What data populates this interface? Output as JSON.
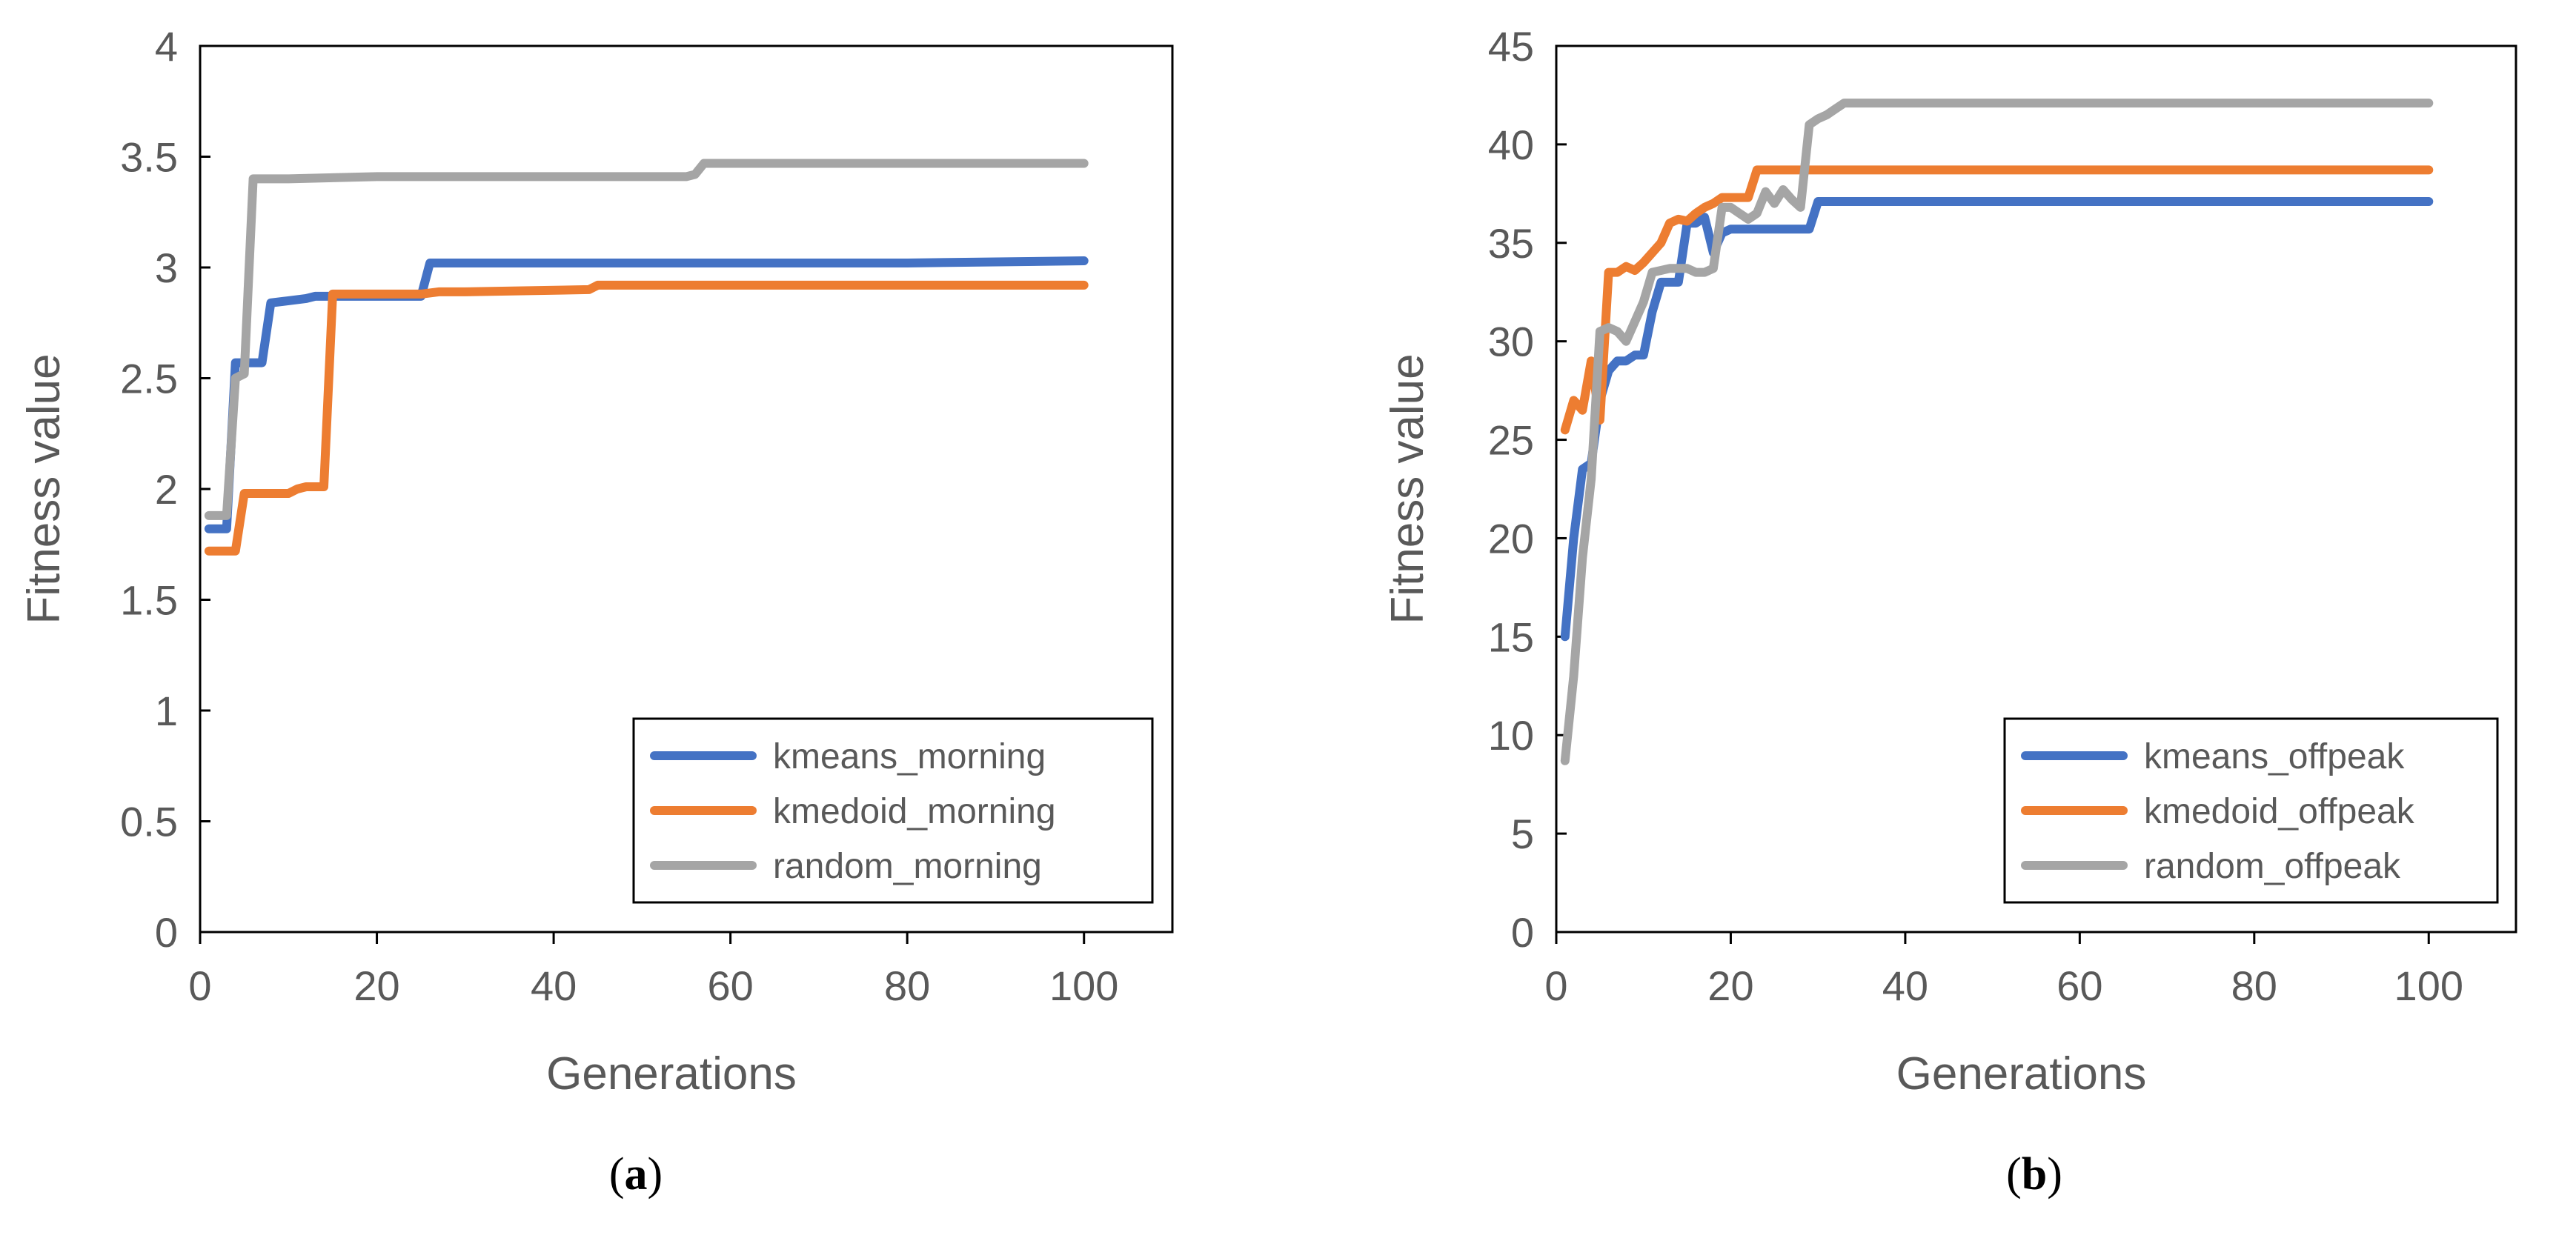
{
  "chart_data": [
    {
      "type": "line",
      "caption_open": "(",
      "caption_letter": "a",
      "caption_close": ")",
      "xlabel": "Generations",
      "ylabel": "Fitness value",
      "xlim": [
        0,
        110
      ],
      "ylim": [
        0,
        4
      ],
      "xticks": [
        0,
        20,
        40,
        60,
        80,
        100
      ],
      "yticks": [
        0,
        0.5,
        1,
        1.5,
        2,
        2.5,
        3,
        3.5,
        4
      ],
      "legend_position": "bottom-right",
      "series": [
        {
          "name": "kmeans_morning",
          "color": "#4472C4",
          "points": [
            [
              1,
              1.82
            ],
            [
              3,
              1.82
            ],
            [
              4,
              2.57
            ],
            [
              5,
              2.57
            ],
            [
              6,
              2.57
            ],
            [
              7,
              2.57
            ],
            [
              8,
              2.84
            ],
            [
              10,
              2.85
            ],
            [
              12,
              2.86
            ],
            [
              13,
              2.87
            ],
            [
              20,
              2.87
            ],
            [
              24,
              2.87
            ],
            [
              25,
              2.87
            ],
            [
              26,
              3.02
            ],
            [
              40,
              3.02
            ],
            [
              60,
              3.02
            ],
            [
              80,
              3.02
            ],
            [
              100,
              3.03
            ]
          ]
        },
        {
          "name": "kmedoid_morning",
          "color": "#ED7D31",
          "points": [
            [
              1,
              1.72
            ],
            [
              3,
              1.72
            ],
            [
              4,
              1.72
            ],
            [
              5,
              1.98
            ],
            [
              6,
              1.98
            ],
            [
              10,
              1.98
            ],
            [
              11,
              2.0
            ],
            [
              12,
              2.01
            ],
            [
              14,
              2.01
            ],
            [
              15,
              2.88
            ],
            [
              20,
              2.88
            ],
            [
              25,
              2.88
            ],
            [
              27,
              2.89
            ],
            [
              30,
              2.89
            ],
            [
              44,
              2.9
            ],
            [
              45,
              2.92
            ],
            [
              60,
              2.92
            ],
            [
              80,
              2.92
            ],
            [
              100,
              2.92
            ]
          ]
        },
        {
          "name": "random_morning",
          "color": "#A5A5A5",
          "points": [
            [
              1,
              1.88
            ],
            [
              3,
              1.88
            ],
            [
              4,
              2.5
            ],
            [
              5,
              2.52
            ],
            [
              6,
              3.4
            ],
            [
              10,
              3.4
            ],
            [
              20,
              3.41
            ],
            [
              40,
              3.41
            ],
            [
              55,
              3.41
            ],
            [
              56,
              3.42
            ],
            [
              57,
              3.47
            ],
            [
              60,
              3.47
            ],
            [
              80,
              3.47
            ],
            [
              100,
              3.47
            ]
          ]
        }
      ]
    },
    {
      "type": "line",
      "caption_open": "(",
      "caption_letter": "b",
      "caption_close": ")",
      "xlabel": "Generations",
      "ylabel": "Fitness value",
      "xlim": [
        0,
        110
      ],
      "ylim": [
        0,
        45
      ],
      "xticks": [
        0,
        20,
        40,
        60,
        80,
        100
      ],
      "yticks": [
        0,
        5,
        10,
        15,
        20,
        25,
        30,
        35,
        40,
        45
      ],
      "legend_position": "bottom-right",
      "series": [
        {
          "name": "kmeans_offpeak",
          "color": "#4472C4",
          "points": [
            [
              1,
              15
            ],
            [
              2,
              20
            ],
            [
              3,
              23.5
            ],
            [
              4,
              23.8
            ],
            [
              5,
              27
            ],
            [
              6,
              28.5
            ],
            [
              7,
              29
            ],
            [
              8,
              29
            ],
            [
              9,
              29.3
            ],
            [
              10,
              29.3
            ],
            [
              11,
              31.5
            ],
            [
              12,
              33
            ],
            [
              13,
              33
            ],
            [
              14,
              33
            ],
            [
              15,
              36
            ],
            [
              16,
              36
            ],
            [
              17,
              36.3
            ],
            [
              18,
              34.5
            ],
            [
              19,
              35.5
            ],
            [
              20,
              35.7
            ],
            [
              25,
              35.7
            ],
            [
              28,
              35.7
            ],
            [
              29,
              35.7
            ],
            [
              30,
              37.1
            ],
            [
              40,
              37.1
            ],
            [
              60,
              37.1
            ],
            [
              80,
              37.1
            ],
            [
              100,
              37.1
            ]
          ]
        },
        {
          "name": "kmedoid_offpeak",
          "color": "#ED7D31",
          "points": [
            [
              1,
              25.5
            ],
            [
              2,
              27
            ],
            [
              3,
              26.5
            ],
            [
              4,
              29
            ],
            [
              5,
              26
            ],
            [
              6,
              33.5
            ],
            [
              7,
              33.5
            ],
            [
              8,
              33.8
            ],
            [
              9,
              33.6
            ],
            [
              10,
              34
            ],
            [
              11,
              34.5
            ],
            [
              12,
              35
            ],
            [
              13,
              36
            ],
            [
              14,
              36.2
            ],
            [
              15,
              36.1
            ],
            [
              16,
              36.5
            ],
            [
              17,
              36.8
            ],
            [
              18,
              37
            ],
            [
              19,
              37.3
            ],
            [
              20,
              37.3
            ],
            [
              22,
              37.3
            ],
            [
              23,
              38.7
            ],
            [
              30,
              38.7
            ],
            [
              40,
              38.7
            ],
            [
              60,
              38.7
            ],
            [
              80,
              38.7
            ],
            [
              100,
              38.7
            ]
          ]
        },
        {
          "name": "random_offpeak",
          "color": "#A5A5A5",
          "points": [
            [
              1,
              8.7
            ],
            [
              2,
              13
            ],
            [
              3,
              19
            ],
            [
              4,
              23
            ],
            [
              5,
              30.5
            ],
            [
              6,
              30.7
            ],
            [
              7,
              30.5
            ],
            [
              8,
              30
            ],
            [
              9,
              31
            ],
            [
              10,
              32
            ],
            [
              11,
              33.5
            ],
            [
              12,
              33.6
            ],
            [
              13,
              33.7
            ],
            [
              14,
              33.7
            ],
            [
              15,
              33.7
            ],
            [
              16,
              33.5
            ],
            [
              17,
              33.5
            ],
            [
              18,
              33.7
            ],
            [
              19,
              36.8
            ],
            [
              20,
              36.8
            ],
            [
              21,
              36.5
            ],
            [
              22,
              36.2
            ],
            [
              23,
              36.5
            ],
            [
              24,
              37.6
            ],
            [
              25,
              37
            ],
            [
              26,
              37.7
            ],
            [
              27,
              37.2
            ],
            [
              28,
              36.8
            ],
            [
              29,
              41
            ],
            [
              30,
              41.3
            ],
            [
              31,
              41.5
            ],
            [
              32,
              41.8
            ],
            [
              33,
              42.1
            ],
            [
              40,
              42.1
            ],
            [
              60,
              42.1
            ],
            [
              80,
              42.1
            ],
            [
              100,
              42.1
            ]
          ]
        }
      ]
    }
  ]
}
